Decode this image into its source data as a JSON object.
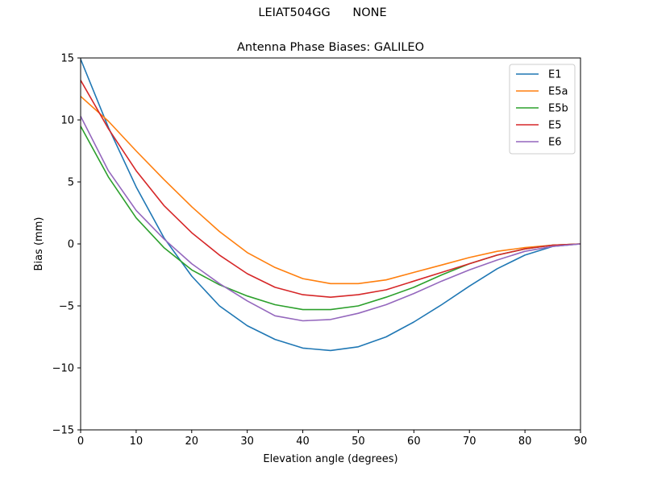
{
  "figure": {
    "suptitle": "LEIAT504GG      NONE"
  },
  "chart_data": {
    "type": "line",
    "title": "Antenna Phase Biases: GALILEO",
    "xlabel": "Elevation angle (degrees)",
    "ylabel": "Bias (mm)",
    "xlim": [
      0,
      90
    ],
    "ylim": [
      -15,
      15
    ],
    "xticks": [
      0,
      10,
      20,
      30,
      40,
      50,
      60,
      70,
      80,
      90
    ],
    "yticks": [
      -15,
      -10,
      -5,
      0,
      5,
      10,
      15
    ],
    "xtick_labels": [
      "0",
      "10",
      "20",
      "30",
      "40",
      "50",
      "60",
      "70",
      "80",
      "90"
    ],
    "ytick_labels": [
      "−15",
      "−10",
      "−5",
      "0",
      "5",
      "10",
      "15"
    ],
    "grid": false,
    "legend_position": "top-right",
    "x": [
      0,
      5,
      10,
      15,
      20,
      25,
      30,
      35,
      40,
      45,
      50,
      55,
      60,
      65,
      70,
      75,
      80,
      85,
      90
    ],
    "series": [
      {
        "name": "E1",
        "color": "#1f77b4",
        "values": [
          14.9,
          9.4,
          4.6,
          0.5,
          -2.6,
          -5.0,
          -6.6,
          -7.7,
          -8.4,
          -8.6,
          -8.3,
          -7.5,
          -6.3,
          -4.9,
          -3.4,
          -2.0,
          -0.9,
          -0.2,
          0.0
        ]
      },
      {
        "name": "E5a",
        "color": "#ff7f0e",
        "values": [
          11.9,
          9.9,
          7.5,
          5.2,
          3.0,
          1.0,
          -0.7,
          -1.9,
          -2.8,
          -3.2,
          -3.2,
          -2.9,
          -2.3,
          -1.7,
          -1.1,
          -0.6,
          -0.3,
          -0.1,
          0.0
        ]
      },
      {
        "name": "E5b",
        "color": "#2ca02c",
        "values": [
          9.5,
          5.4,
          2.1,
          -0.3,
          -2.1,
          -3.3,
          -4.2,
          -4.9,
          -5.3,
          -5.3,
          -5.0,
          -4.3,
          -3.5,
          -2.5,
          -1.6,
          -0.9,
          -0.4,
          -0.1,
          0.0
        ]
      },
      {
        "name": "E5",
        "color": "#d62728",
        "values": [
          13.2,
          9.3,
          5.9,
          3.1,
          0.9,
          -0.9,
          -2.4,
          -3.5,
          -4.1,
          -4.3,
          -4.1,
          -3.7,
          -3.0,
          -2.3,
          -1.6,
          -0.9,
          -0.4,
          -0.1,
          0.0
        ]
      },
      {
        "name": "E6",
        "color": "#9467bd",
        "values": [
          10.3,
          5.9,
          2.7,
          0.4,
          -1.6,
          -3.2,
          -4.6,
          -5.8,
          -6.2,
          -6.1,
          -5.6,
          -4.9,
          -4.0,
          -3.0,
          -2.1,
          -1.3,
          -0.6,
          -0.2,
          0.0
        ]
      }
    ]
  }
}
